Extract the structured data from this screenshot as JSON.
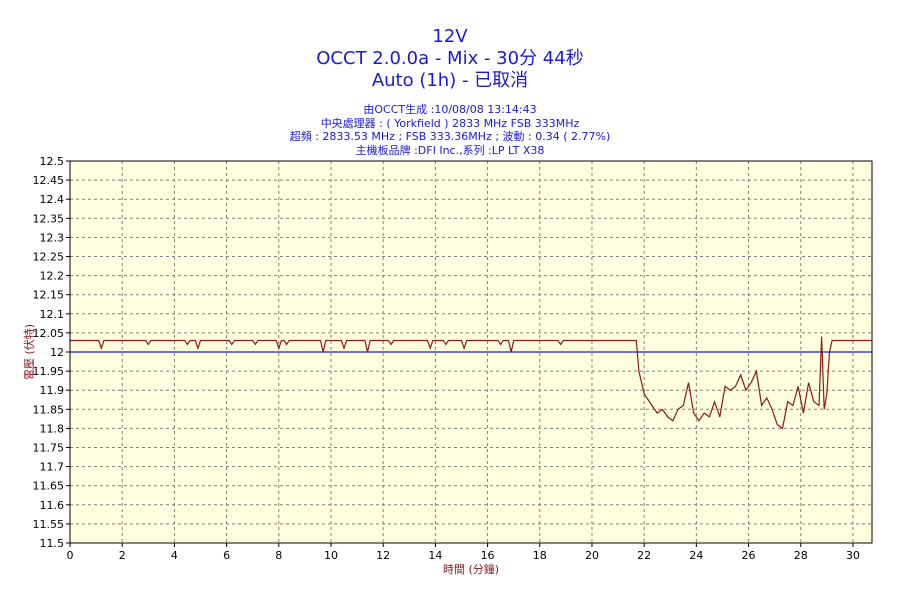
{
  "header": {
    "title": "12V",
    "subtitle1": "OCCT 2.0.0a - Mix - 30分 44秒",
    "subtitle2": "Auto (1h) - 已取消",
    "info": [
      "由OCCT生成 :10/08/08 13:14:43",
      "中央處理器 : ( Yorkfield ) 2833 MHz FSB 333MHz",
      "超頻 : 2833.53 MHz ; FSB 333.36MHz ; 波動 : 0.34 ( 2.77%)",
      "主機板品牌 :DFI Inc.,系列 :LP LT X38"
    ]
  },
  "chart_data": {
    "type": "line",
    "xlabel": "時間 (分鐘)",
    "ylabel": "電壓 (伏特)",
    "xlim": [
      0,
      30.73
    ],
    "ylim": [
      11.5,
      12.5
    ],
    "xticks": [
      0,
      2,
      4,
      6,
      8,
      10,
      12,
      14,
      16,
      18,
      20,
      22,
      24,
      26,
      28,
      30
    ],
    "yticks": [
      11.5,
      11.55,
      11.6,
      11.65,
      11.7,
      11.75,
      11.8,
      11.85,
      11.9,
      11.95,
      12,
      12.05,
      12.1,
      12.15,
      12.2,
      12.25,
      12.3,
      12.35,
      12.4,
      12.45,
      12.5
    ],
    "grid": true,
    "colors": {
      "line": "#8b1a1a",
      "reference": "#1a1ad6",
      "plot_bg": "#ffffe0",
      "title": "#1a1ad6"
    },
    "reference_line": 12.0,
    "series": [
      {
        "x": [
          0,
          1.1,
          1.2,
          1.3,
          2.9,
          3.0,
          3.1,
          4.4,
          4.5,
          4.6,
          4.8,
          4.9,
          5.0,
          6.1,
          6.2,
          6.3,
          7.0,
          7.1,
          7.2,
          7.9,
          8.0,
          8.1,
          8.2,
          8.3,
          8.4,
          9.6,
          9.7,
          9.8,
          10.4,
          10.5,
          10.6,
          11.3,
          11.4,
          11.5,
          12.2,
          12.3,
          12.4,
          13.7,
          13.8,
          13.9,
          14.3,
          14.4,
          14.5,
          15.0,
          15.1,
          15.2,
          16.4,
          16.5,
          16.6,
          16.8,
          16.9,
          17.0,
          18.7,
          18.8,
          18.9,
          21.7,
          21.8,
          22.0,
          22.1,
          22.3,
          22.5,
          22.7,
          22.9,
          23.1,
          23.3,
          23.5,
          23.7,
          23.9,
          24.1,
          24.3,
          24.5,
          24.7,
          24.9,
          25.1,
          25.3,
          25.5,
          25.7,
          25.9,
          26.1,
          26.3,
          26.5,
          26.7,
          26.9,
          27.1,
          27.3,
          27.5,
          27.7,
          27.9,
          28.1,
          28.3,
          28.5,
          28.7,
          28.8,
          28.9,
          29.0,
          29.1,
          29.2,
          29.3,
          30.73
        ],
        "y": [
          12.03,
          12.03,
          12.01,
          12.03,
          12.03,
          12.02,
          12.03,
          12.03,
          12.02,
          12.03,
          12.03,
          12.01,
          12.03,
          12.03,
          12.02,
          12.03,
          12.03,
          12.02,
          12.03,
          12.03,
          12.01,
          12.03,
          12.03,
          12.02,
          12.03,
          12.03,
          12.0,
          12.03,
          12.03,
          12.01,
          12.03,
          12.03,
          12.0,
          12.03,
          12.03,
          12.02,
          12.03,
          12.03,
          12.01,
          12.03,
          12.03,
          12.02,
          12.03,
          12.03,
          12.01,
          12.03,
          12.03,
          12.02,
          12.03,
          12.03,
          12.0,
          12.03,
          12.03,
          12.02,
          12.03,
          12.03,
          11.95,
          11.89,
          11.88,
          11.86,
          11.84,
          11.85,
          11.83,
          11.82,
          11.85,
          11.86,
          11.92,
          11.84,
          11.82,
          11.84,
          11.83,
          11.87,
          11.83,
          11.91,
          11.9,
          11.91,
          11.94,
          11.9,
          11.92,
          11.95,
          11.86,
          11.88,
          11.85,
          11.81,
          11.8,
          11.87,
          11.86,
          11.91,
          11.84,
          11.92,
          11.87,
          11.86,
          12.04,
          11.85,
          11.89,
          12.0,
          12.03,
          12.03,
          12.03
        ]
      }
    ]
  }
}
